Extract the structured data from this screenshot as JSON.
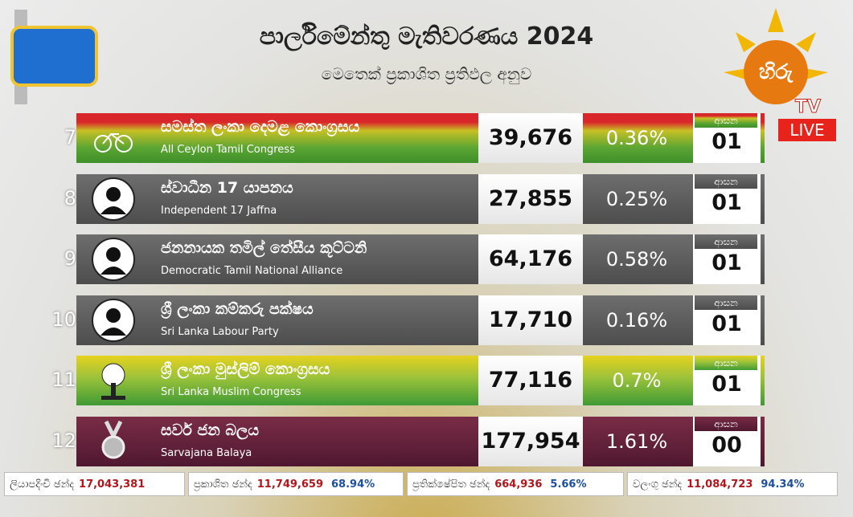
{
  "header": {
    "title": "පාර්ලිමේන්තු මැතිවරණය 2024",
    "subtitle": "මෙතෙක් ප්‍රකාශිත ප්‍රතිඵල අනුව"
  },
  "logo": {
    "channel": "හිරු",
    "tv": "TV",
    "live": "LIVE"
  },
  "rows": [
    {
      "rank": "7",
      "name_si": "සමස්ත ලංකා දෙමළ කොංග්‍රසය",
      "name_en": "All Ceylon Tamil Congress",
      "votes": "39,676",
      "percent": "0.36%",
      "seats_label": "ආසන",
      "seats": "01"
    },
    {
      "rank": "8",
      "name_si": "ස්වාධීන 17 යාපනය",
      "name_en": "Independent 17 Jaffna",
      "votes": "27,855",
      "percent": "0.25%",
      "seats_label": "ආසන",
      "seats": "01"
    },
    {
      "rank": "9",
      "name_si": "ජනනායක තමිල් තේසීය කූට්ටනි",
      "name_en": "Democratic Tamil National Alliance",
      "votes": "64,176",
      "percent": "0.58%",
      "seats_label": "ආසන",
      "seats": "01"
    },
    {
      "rank": "10",
      "name_si": "ශ්‍රී ලංකා කම්කරු පක්ෂය",
      "name_en": "Sri Lanka Labour Party",
      "votes": "17,710",
      "percent": "0.16%",
      "seats_label": "ආසන",
      "seats": "01"
    },
    {
      "rank": "11",
      "name_si": "ශ්‍රී ලංකා මුස්ලිම් කොංග්‍රසය",
      "name_en": "Sri Lanka Muslim Congress",
      "votes": "77,116",
      "percent": "0.7%",
      "seats_label": "ආසන",
      "seats": "01"
    },
    {
      "rank": "12",
      "name_si": "සර්ව ජන බලය",
      "name_en": "Sarvajana Balaya",
      "votes": "177,954",
      "percent": "1.61%",
      "seats_label": "ආසන",
      "seats": "00"
    }
  ],
  "footer": [
    {
      "label": "ලියාපදිංචි ඡන්ද",
      "value": "17,043,381"
    },
    {
      "label": "ප්‍රකාශිත ඡන්ද",
      "value": "11,749,659",
      "percent": "68.94%"
    },
    {
      "label": "ප්‍රතික්ෂේපිත ඡන්ද",
      "value": "664,936",
      "percent": "5.66%"
    },
    {
      "label": "වලංගු ඡන්ද",
      "value": "11,084,723",
      "percent": "94.34%"
    }
  ]
}
